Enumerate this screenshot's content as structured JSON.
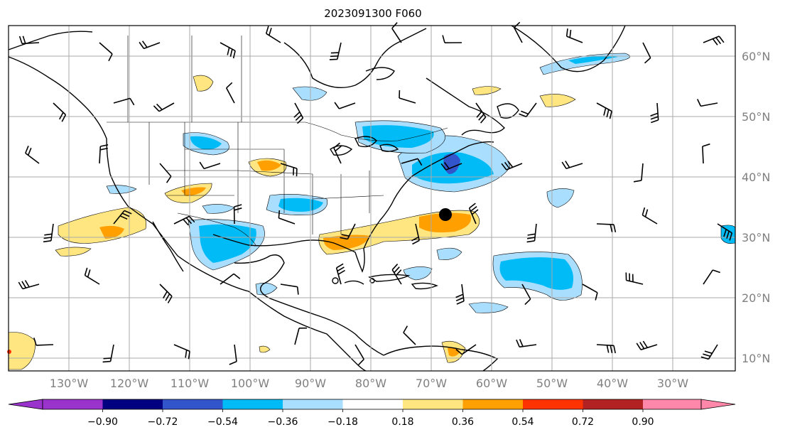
{
  "title": "2023091300 F060",
  "lat_labels": [
    "10°N",
    "20°N",
    "30°N",
    "40°N",
    "50°N",
    "60°N"
  ],
  "lon_labels": [
    "130°W",
    "120°W",
    "110°W",
    "100°W",
    "90°W",
    "80°W",
    "70°W",
    "60°W",
    "50°W",
    "40°W",
    "30°W"
  ],
  "colorbar": {
    "ticks": [
      "−0.90",
      "−0.72",
      "−0.54",
      "−0.36",
      "−0.18",
      "0.18",
      "0.36",
      "0.54",
      "0.72",
      "0.90"
    ],
    "colors": [
      "#9933cc",
      "#000080",
      "#3355cc",
      "#00bbf5",
      "#aadeff",
      "#ffffff",
      "#ffe680",
      "#ffa000",
      "#ff3300",
      "#b22222",
      "#ff88aa"
    ]
  },
  "colors": {
    "coast": "#000000",
    "grid": "#aaaaaa",
    "label": "#808080"
  },
  "storm_marker": "storm-center"
}
